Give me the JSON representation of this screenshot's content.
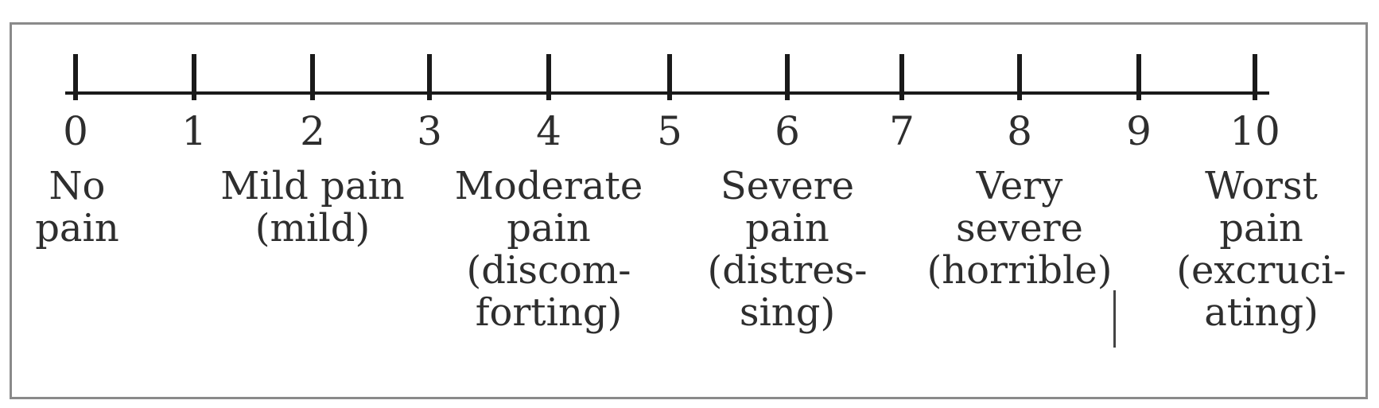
{
  "scale": {
    "numbers": [
      "0",
      "1",
      "2",
      "3",
      "4",
      "5",
      "6",
      "7",
      "8",
      "9",
      "10"
    ],
    "descriptors": [
      {
        "anchor": 0,
        "lines": [
          "No",
          "pain"
        ]
      },
      {
        "anchor": 2,
        "lines": [
          "Mild pain",
          "(mild)"
        ]
      },
      {
        "anchor": 4,
        "lines": [
          "Moderate",
          "pain",
          "(discom-",
          "forting)"
        ]
      },
      {
        "anchor": 6,
        "lines": [
          "Severe",
          "pain",
          "(distres-",
          "sing)"
        ]
      },
      {
        "anchor": 8,
        "lines": [
          "Very",
          "severe",
          "(horrible)"
        ]
      },
      {
        "anchor": 10,
        "lines": [
          "Worst",
          "pain",
          "(excruci-",
          "ating)"
        ]
      }
    ]
  },
  "colors": {
    "line": "#1a1a1a",
    "frame": "#8a8a8a",
    "text": "#2e2e2e"
  }
}
